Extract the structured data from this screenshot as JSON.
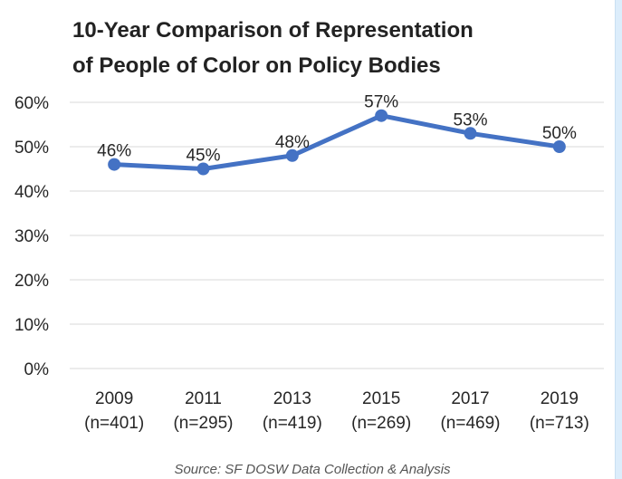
{
  "chart_data": {
    "type": "line",
    "title": "10-Year Comparison of Representation of People of Color on Policy Bodies",
    "title_lines": [
      "10-Year Comparison of Representation",
      "of People of Color on Policy Bodies"
    ],
    "categories": [
      "2009",
      "2011",
      "2013",
      "2015",
      "2017",
      "2019"
    ],
    "category_sublabels": [
      "(n=401)",
      "(n=295)",
      "(n=419)",
      "(n=269)",
      "(n=469)",
      "(n=713)"
    ],
    "series": [
      {
        "values": [
          46,
          45,
          48,
          57,
          53,
          50
        ],
        "data_labels": [
          "46%",
          "45%",
          "48%",
          "57%",
          "53%",
          "50%"
        ],
        "color": "#4472c4"
      }
    ],
    "yticks": [
      0,
      10,
      20,
      30,
      40,
      50,
      60
    ],
    "ytick_labels": [
      "0%",
      "10%",
      "20%",
      "30%",
      "40%",
      "50%",
      "60%"
    ],
    "ylim": [
      0,
      60
    ],
    "xlabel": "",
    "ylabel": "",
    "grid": true,
    "legend": "none",
    "source": "Source: SF DOSW Data Collection & Analysis"
  },
  "colors": {
    "page_background": "#dcedfb",
    "plot_background": "#ffffff",
    "gridline": "#d9d9d9",
    "line": "#4472c4",
    "text": "#262626"
  }
}
